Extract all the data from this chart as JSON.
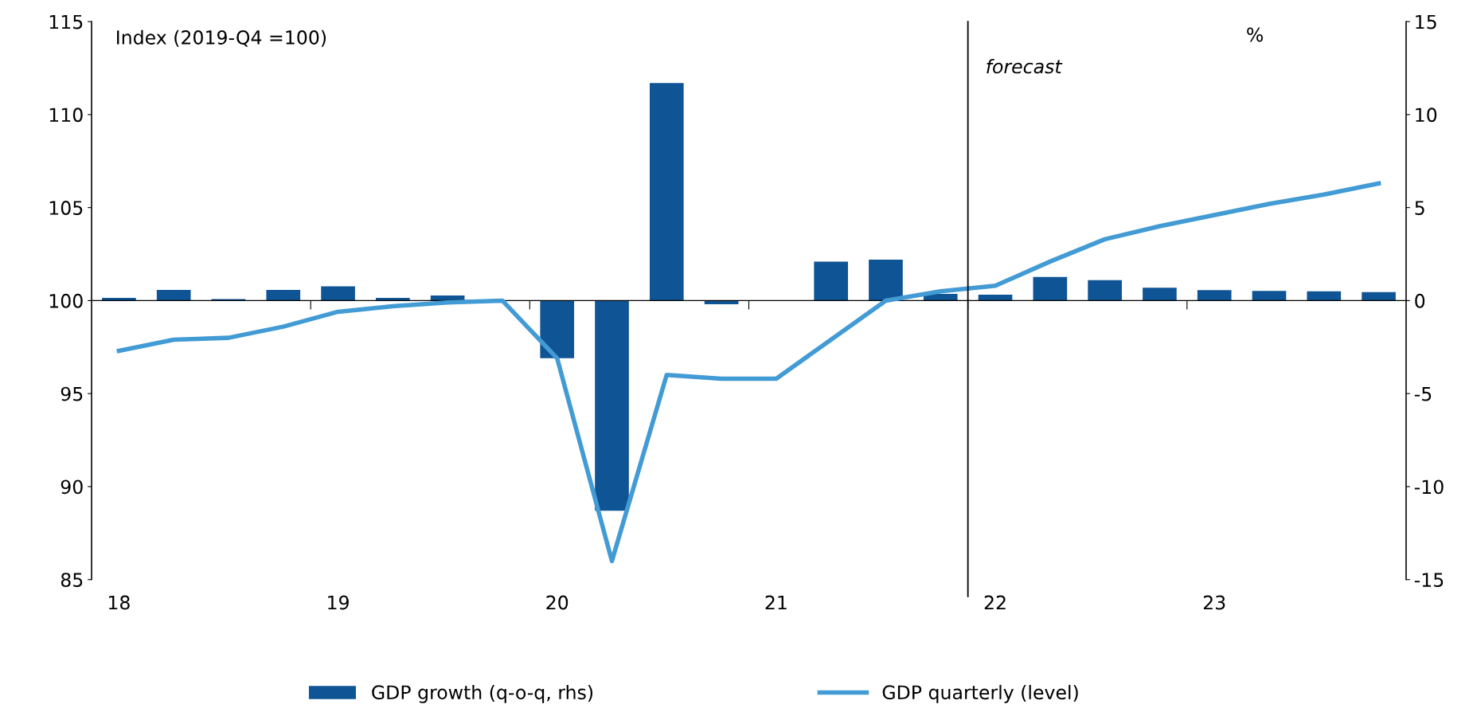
{
  "chart_data": {
    "type": "bar",
    "ylabel": "Index (2019-Q4 =100)",
    "y2label": "%",
    "x": [
      18.125,
      18.375,
      18.625,
      18.875,
      19.125,
      19.375,
      19.625,
      19.875,
      20.125,
      20.375,
      20.625,
      20.875,
      21.125,
      21.375,
      21.625,
      21.875,
      22.125,
      22.375,
      22.625,
      22.875,
      23.125,
      23.375,
      23.625,
      23.875
    ],
    "series": [
      {
        "name": "GDP growth (q-o-q, rhs)",
        "axis": "y2",
        "color": "#0f5494",
        "values": [
          0.15,
          0.57,
          0.08,
          0.57,
          0.77,
          0.15,
          0.27,
          0.0,
          -3.1,
          -11.3,
          11.7,
          -0.2,
          0.0,
          2.1,
          2.2,
          0.36,
          0.32,
          1.27,
          1.1,
          0.69,
          0.56,
          0.52,
          0.5,
          0.46
        ]
      },
      {
        "name": "GDP quarterly (level)",
        "type": "line",
        "color": "#429bd4",
        "values": [
          97.3,
          97.9,
          98.0,
          98.6,
          99.4,
          99.7,
          99.9,
          100.0,
          96.9,
          86.0,
          96.0,
          95.8,
          95.8,
          97.9,
          100.0,
          100.5,
          100.8,
          102.1,
          103.3,
          104.0,
          104.6,
          105.2,
          105.7,
          106.3
        ]
      }
    ],
    "xlim": [
      18,
      24
    ],
    "xticks": [
      {
        "value": 18.125,
        "label": "18"
      },
      {
        "value": 19.125,
        "label": "19"
      },
      {
        "value": 20.125,
        "label": "20"
      },
      {
        "value": 21.125,
        "label": "21"
      },
      {
        "value": 22.125,
        "label": "22"
      },
      {
        "value": 23.125,
        "label": "23"
      },
      {
        "value": 19,
        "label": null
      },
      {
        "value": 20,
        "label": null
      },
      {
        "value": 21,
        "label": null
      },
      {
        "value": 22,
        "label": null
      },
      {
        "value": 23,
        "label": null
      }
    ],
    "ylim": [
      85,
      115
    ],
    "yticks": [
      85,
      90,
      95,
      100,
      105,
      110,
      115
    ],
    "y2lim": [
      -15,
      15
    ],
    "y2ticks": [
      -15,
      -10,
      -5,
      0,
      5,
      10,
      15
    ],
    "ref_lines": [
      {
        "axis": "x",
        "value": 22,
        "label": "forecast",
        "color": "#000000"
      }
    ],
    "grid": false,
    "legend": "bottom"
  }
}
